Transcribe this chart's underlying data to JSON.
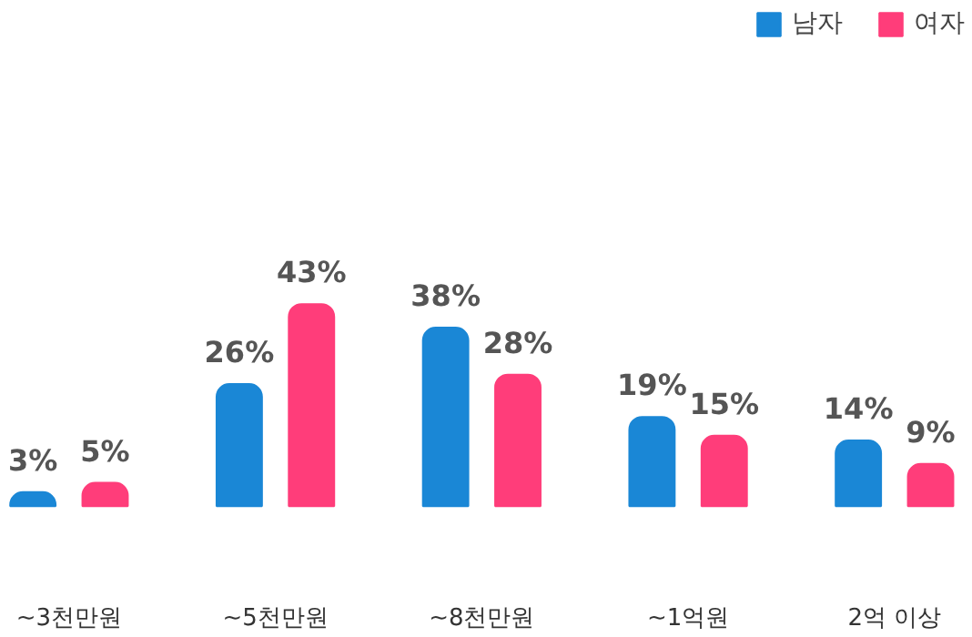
{
  "chart_data": {
    "type": "bar",
    "categories": [
      "~3천만원",
      "~5천만원",
      "~8천만원",
      "~1억원",
      "2억 이상"
    ],
    "series": [
      {
        "name": "남자",
        "color": "#1a87d6",
        "values": [
          3,
          26,
          38,
          19,
          14
        ],
        "value_labels": [
          "3%",
          "26%",
          "38%",
          "19%",
          "14%"
        ]
      },
      {
        "name": "여자",
        "color": "#ff3d7a",
        "values": [
          5,
          43,
          28,
          15,
          9
        ],
        "value_labels": [
          "5%",
          "43%",
          "28%",
          "15%",
          "9%"
        ]
      }
    ],
    "legend": "top right"
  }
}
